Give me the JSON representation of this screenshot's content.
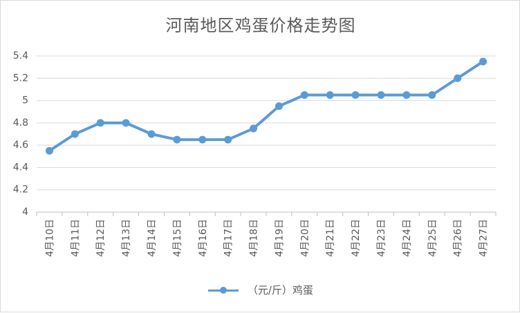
{
  "chart_data": {
    "type": "line",
    "title": "河南地区鸡蛋价格走势图",
    "categories": [
      "4月10日",
      "4月11日",
      "4月12日",
      "4月13日",
      "4月14日",
      "4月15日",
      "4月16日",
      "4月17日",
      "4月18日",
      "4月19日",
      "4月20日",
      "4月21日",
      "4月22日",
      "4月23日",
      "4月24日",
      "4月25日",
      "4月26日",
      "4月27日"
    ],
    "series": [
      {
        "name": "（元/斤）鸡蛋",
        "values": [
          4.55,
          4.7,
          4.8,
          4.8,
          4.7,
          4.65,
          4.65,
          4.65,
          4.75,
          4.95,
          5.05,
          5.05,
          5.05,
          5.05,
          5.05,
          5.05,
          5.2,
          5.35
        ],
        "color": "#5b9bd5"
      }
    ],
    "ylim": [
      4,
      5.4
    ],
    "yticks": [
      "4",
      "4.2",
      "4.4",
      "4.6",
      "4.8",
      "5",
      "5.2",
      "5.4"
    ],
    "grid": true,
    "legend": "bottom"
  }
}
